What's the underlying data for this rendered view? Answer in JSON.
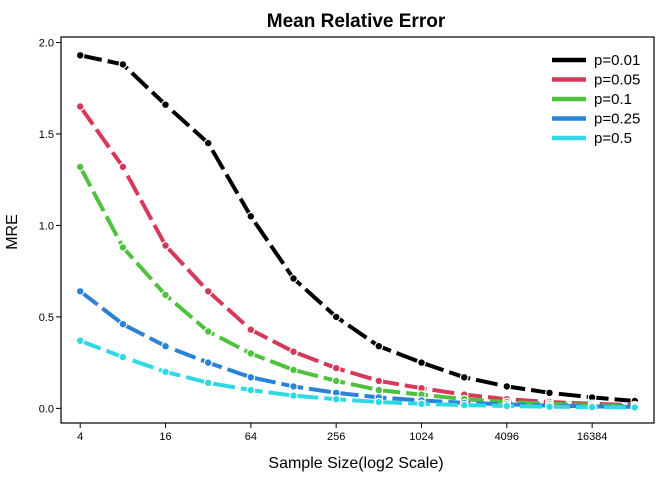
{
  "chart_data": {
    "type": "line",
    "title": "Mean Relative Error",
    "xlabel": "Sample Size(log2 Scale)",
    "ylabel": "MRE",
    "x_scale": "log2",
    "x": [
      4,
      8,
      16,
      32,
      64,
      128,
      256,
      512,
      1024,
      2048,
      4096,
      8192,
      16384,
      32768
    ],
    "xticks": [
      "4",
      "16",
      "64",
      "256",
      "1024",
      "4096",
      "16384"
    ],
    "xtick_values": [
      4,
      16,
      64,
      256,
      1024,
      4096,
      16384
    ],
    "yticks": [
      "0.0",
      "0.5",
      "1.0",
      "1.5",
      "2.0"
    ],
    "ytick_values": [
      0.0,
      0.5,
      1.0,
      1.5,
      2.0
    ],
    "ylim": [
      -0.08,
      2.03
    ],
    "xlim_log2": [
      1.55,
      15.45
    ],
    "grid": false,
    "legend_position": "top-right",
    "series": [
      {
        "name": "p=0.01",
        "color": "#000000",
        "values": [
          1.93,
          1.88,
          1.66,
          1.45,
          1.05,
          0.71,
          0.5,
          0.34,
          0.25,
          0.17,
          0.12,
          0.085,
          0.06,
          0.04
        ]
      },
      {
        "name": "p=0.05",
        "color": "#d6395a",
        "values": [
          1.65,
          1.32,
          0.89,
          0.64,
          0.43,
          0.31,
          0.22,
          0.15,
          0.11,
          0.075,
          0.05,
          0.035,
          0.025,
          0.018
        ]
      },
      {
        "name": "p=0.1",
        "color": "#4ec23c",
        "values": [
          1.32,
          0.88,
          0.62,
          0.42,
          0.3,
          0.21,
          0.15,
          0.1,
          0.075,
          0.05,
          0.035,
          0.025,
          0.018,
          0.012
        ]
      },
      {
        "name": "p=0.25",
        "color": "#2a82d9",
        "values": [
          0.64,
          0.46,
          0.34,
          0.25,
          0.17,
          0.12,
          0.085,
          0.06,
          0.043,
          0.03,
          0.022,
          0.015,
          0.011,
          0.008
        ]
      },
      {
        "name": "p=0.5",
        "color": "#2ed9e3",
        "values": [
          0.37,
          0.28,
          0.2,
          0.14,
          0.1,
          0.07,
          0.05,
          0.035,
          0.025,
          0.018,
          0.013,
          0.009,
          0.007,
          0.005
        ]
      }
    ]
  }
}
